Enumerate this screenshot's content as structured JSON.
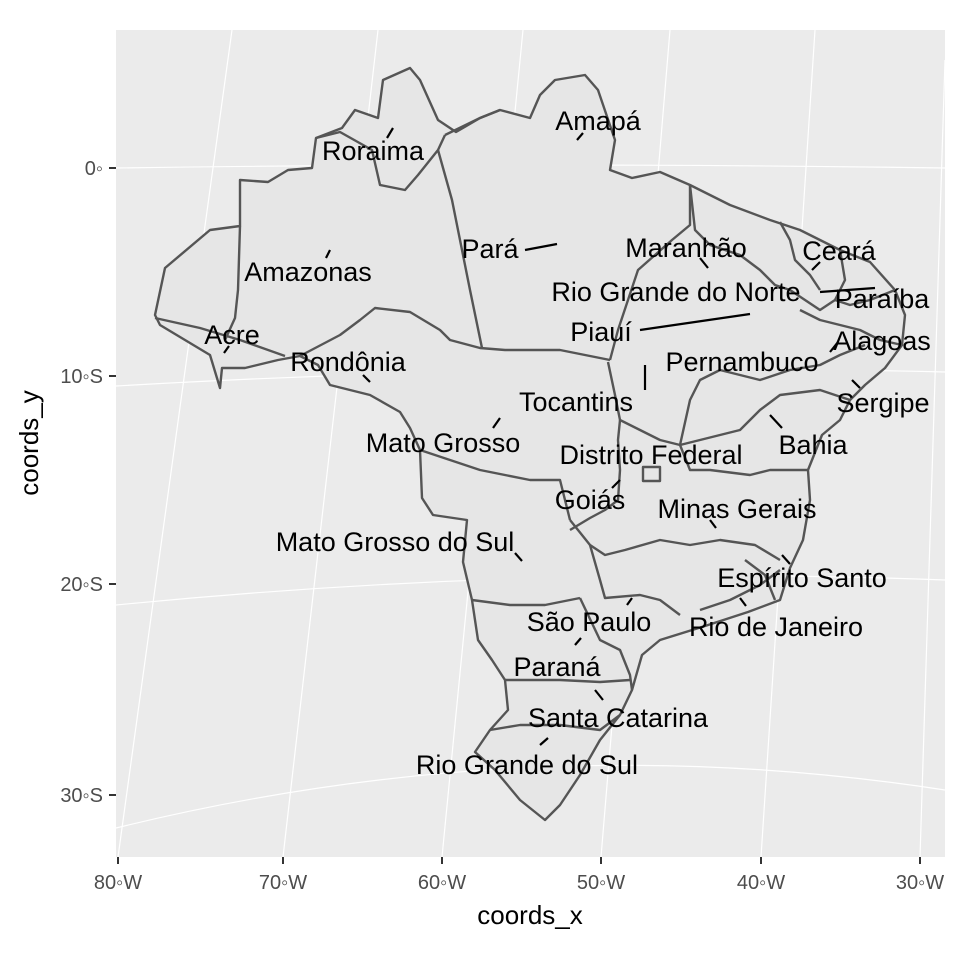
{
  "map": {
    "xlabel": "coords_x",
    "ylabel": "coords_y",
    "x_ticks": [
      "80◦W",
      "70◦W",
      "60◦W",
      "50◦W",
      "40◦W",
      "30◦W"
    ],
    "y_ticks": [
      "0◦",
      "10◦S",
      "20◦S",
      "30◦S"
    ],
    "colors": {
      "panel": "#ebebeb",
      "land": "#e6e6e6",
      "border": "#555555",
      "grid": "#ffffff"
    }
  },
  "chart_data": {
    "type": "map",
    "region": "Brazil",
    "xlabel": "coords_x",
    "ylabel": "coords_y",
    "xlim": [
      -80,
      -30
    ],
    "ylim": [
      -33,
      5
    ],
    "states": [
      {
        "name": "Amapá",
        "lon": -51.9,
        "lat": 1.4
      },
      {
        "name": "Roraima",
        "lon": -62.8,
        "lat": 2.0
      },
      {
        "name": "Amazonas",
        "lon": -65.0,
        "lat": -4.0
      },
      {
        "name": "Pará",
        "lon": -51.5,
        "lat": -3.7
      },
      {
        "name": "Maranhão",
        "lon": -43.9,
        "lat": -4.6
      },
      {
        "name": "Ceará",
        "lon": -39.4,
        "lat": -5.0
      },
      {
        "name": "Rio Grande do Norte",
        "lon": -36.6,
        "lat": -5.8
      },
      {
        "name": "Paraíba",
        "lon": -36.8,
        "lat": -7.0
      },
      {
        "name": "Piauí",
        "lon": -42.8,
        "lat": -7.2
      },
      {
        "name": "Acre",
        "lon": -70.6,
        "lat": -8.8
      },
      {
        "name": "Alagoas",
        "lon": -36.6,
        "lat": -9.5
      },
      {
        "name": "Pernambuco",
        "lon": -37.9,
        "lat": -8.4
      },
      {
        "name": "Rondônia",
        "lon": -62.9,
        "lat": -10.6
      },
      {
        "name": "Sergipe",
        "lon": -37.4,
        "lat": -10.6
      },
      {
        "name": "Tocantins",
        "lon": -48.3,
        "lat": -10.2
      },
      {
        "name": "Bahia",
        "lon": -41.7,
        "lat": -12.5
      },
      {
        "name": "Mato Grosso",
        "lon": -55.9,
        "lat": -12.7
      },
      {
        "name": "Distrito Federal",
        "lon": -47.8,
        "lat": -15.8
      },
      {
        "name": "Goiás",
        "lon": -49.6,
        "lat": -15.9
      },
      {
        "name": "Minas Gerais",
        "lon": -44.6,
        "lat": -18.5
      },
      {
        "name": "Mato Grosso do Sul",
        "lon": -54.8,
        "lat": -20.5
      },
      {
        "name": "Espírito Santo",
        "lon": -40.5,
        "lat": -19.6
      },
      {
        "name": "Rio de Janeiro",
        "lon": -42.7,
        "lat": -22.3
      },
      {
        "name": "São Paulo",
        "lon": -48.5,
        "lat": -22.3
      },
      {
        "name": "Paraná",
        "lon": -51.6,
        "lat": -24.6
      },
      {
        "name": "Santa Catarina",
        "lon": -50.5,
        "lat": -27.2
      },
      {
        "name": "Rio Grande do Sul",
        "lon": -53.2,
        "lat": -29.7
      }
    ]
  }
}
